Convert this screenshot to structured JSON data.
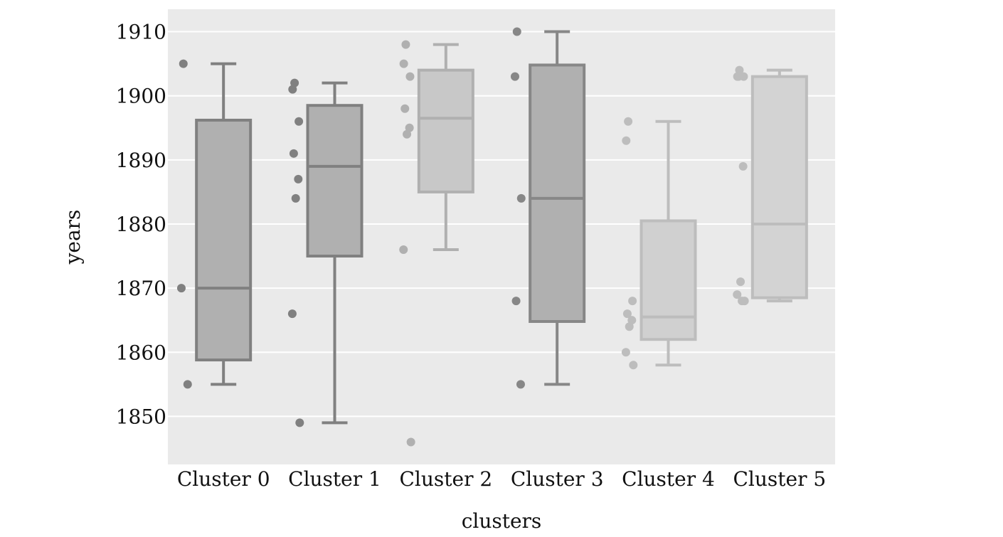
{
  "chart_data": {
    "type": "box",
    "title": "",
    "xlabel": "clusters",
    "ylabel": "years",
    "ylim": [
      1842.5,
      1913.5
    ],
    "yticks": [
      1850,
      1860,
      1870,
      1880,
      1890,
      1900,
      1910
    ],
    "grid": true,
    "categories": [
      "Cluster 0",
      "Cluster 1",
      "Cluster 2",
      "Cluster 3",
      "Cluster 4",
      "Cluster 5"
    ],
    "series": [
      {
        "whisker_low": 1855,
        "q1": 1858.8,
        "median": 1870,
        "q3": 1896.2,
        "whisker_high": 1905,
        "fill": "#b0b0b0",
        "stroke": "#808080",
        "points": [
          1905,
          1870,
          1855
        ]
      },
      {
        "whisker_low": 1849,
        "q1": 1875,
        "median": 1889,
        "q3": 1898.5,
        "whisker_high": 1902,
        "fill": "#b0b0b0",
        "stroke": "#808080",
        "points": [
          1902,
          1901,
          1896,
          1891,
          1887,
          1884,
          1866,
          1849
        ]
      },
      {
        "whisker_low": 1876,
        "q1": 1885,
        "median": 1896.5,
        "q3": 1904,
        "whisker_high": 1908,
        "fill": "#c8c8c8",
        "stroke": "#b0b0b0",
        "points": [
          1908,
          1905,
          1903,
          1898,
          1895,
          1894,
          1876,
          1846
        ]
      },
      {
        "whisker_low": 1855,
        "q1": 1864.8,
        "median": 1884,
        "q3": 1904.8,
        "whisker_high": 1910,
        "fill": "#b0b0b0",
        "stroke": "#878787",
        "points": [
          1910,
          1903,
          1884,
          1868,
          1855
        ]
      },
      {
        "whisker_low": 1858,
        "q1": 1862,
        "median": 1865.5,
        "q3": 1880.5,
        "whisker_high": 1896,
        "fill": "#d0d0d0",
        "stroke": "#bdbdbd",
        "points": [
          1896,
          1893,
          1868,
          1866,
          1865,
          1864,
          1860,
          1858
        ]
      },
      {
        "whisker_low": 1868,
        "q1": 1868.5,
        "median": 1880,
        "q3": 1903,
        "whisker_high": 1904,
        "fill": "#d3d3d3",
        "stroke": "#bdbdbd",
        "points": [
          1904,
          1903,
          1903,
          1903,
          1889,
          1871,
          1869,
          1868,
          1868
        ]
      }
    ]
  },
  "colors": {
    "panel_background": "#eaeaea",
    "grid": "#ffffff"
  }
}
